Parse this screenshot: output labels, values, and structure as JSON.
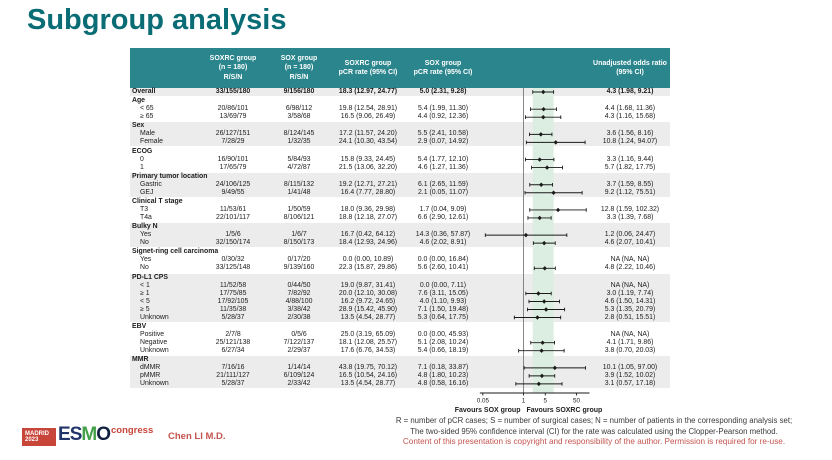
{
  "slide": {
    "title": "Subgroup analysis",
    "presenter": "Chen LI M.D.",
    "logo": {
      "city": "MADRID",
      "year": "2023",
      "letters": [
        "E",
        "S",
        "M",
        "O"
      ],
      "congress": "congress"
    },
    "footnotes": [
      "R = number of pCR cases; S = number of surgical cases; N = number of patients in the corresponding analysis set;",
      "The two-sided 95% confidence interval (CI) for the rate was calculated using the Clopper-Pearson method.",
      "Content of this presentation is copyright and responsibility of the author. Permission is required for re-use."
    ]
  },
  "colors": {
    "header_teal": "#2a858c",
    "title_teal": "#0a6c74",
    "stripe_gray": "#ececec",
    "shade_band_green": "#dcede1",
    "footnote_red": "#c4544e",
    "logo_red": "#c8453a",
    "logo_navy": "#22356a",
    "logo_green": "#44a047",
    "marker_black": "#1a1a1a"
  },
  "table": {
    "headers": {
      "subgroup": "",
      "soxrc_rsn": "SOXRC group\n(n = 180)\nR/S/N",
      "sox_rsn": "SOX group\n(n = 180)\nR/S/N",
      "soxrc_pcr": "SOXRC group\npCR rate (95% CI)",
      "sox_pcr": "SOX group\npCR rate (95% CI)",
      "plot": "",
      "or": "Unadjusted odds ratio\n(95% CI)"
    },
    "groups": [
      {
        "label": "",
        "shaded": true,
        "rows": [
          {
            "label": "Overall",
            "bold": true,
            "rsn_soxrc": "33/155/180",
            "rsn_sox": "9/156/180",
            "pcr_soxrc": "18.3 (12.97, 24.77)",
            "pcr_sox": "5.0 (2.31, 9.28)",
            "or_text": "4.3 (1.98, 9.21)",
            "or": 4.3,
            "lo": 1.98,
            "hi": 9.21
          }
        ]
      },
      {
        "label": "Age",
        "shaded": false,
        "rows": [
          {
            "label": "< 65",
            "rsn_soxrc": "20/86/101",
            "rsn_sox": "6/98/112",
            "pcr_soxrc": "19.8 (12.54, 28.91)",
            "pcr_sox": "5.4 (1.99, 11.30)",
            "or_text": "4.4 (1.68, 11.36)",
            "or": 4.4,
            "lo": 1.68,
            "hi": 11.36
          },
          {
            "label": "≥ 65",
            "rsn_soxrc": "13/69/79",
            "rsn_sox": "3/58/68",
            "pcr_soxrc": "16.5 (9.06, 26.49)",
            "pcr_sox": "4.4 (0.92, 12.36)",
            "or_text": "4.3 (1.16, 15.68)",
            "or": 4.3,
            "lo": 1.16,
            "hi": 15.68
          }
        ]
      },
      {
        "label": "Sex",
        "shaded": true,
        "rows": [
          {
            "label": "Male",
            "rsn_soxrc": "26/127/151",
            "rsn_sox": "8/124/145",
            "pcr_soxrc": "17.2 (11.57, 24.20)",
            "pcr_sox": "5.5 (2.41, 10.58)",
            "or_text": "3.6 (1.56, 8.16)",
            "or": 3.6,
            "lo": 1.56,
            "hi": 8.16
          },
          {
            "label": "Female",
            "rsn_soxrc": "7/28/29",
            "rsn_sox": "1/32/35",
            "pcr_soxrc": "24.1 (10.30, 43.54)",
            "pcr_sox": "2.9 (0.07, 14.92)",
            "or_text": "10.8 (1.24, 94.07)",
            "or": 10.8,
            "lo": 1.24,
            "hi": 94.07
          }
        ]
      },
      {
        "label": "ECOG",
        "shaded": false,
        "rows": [
          {
            "label": "0",
            "rsn_soxrc": "16/90/101",
            "rsn_sox": "5/84/93",
            "pcr_soxrc": "15.8 (9.33, 24.45)",
            "pcr_sox": "5.4 (1.77, 12.10)",
            "or_text": "3.3 (1.16, 9.44)",
            "or": 3.3,
            "lo": 1.16,
            "hi": 9.44
          },
          {
            "label": "1",
            "rsn_soxrc": "17/65/79",
            "rsn_sox": "4/72/87",
            "pcr_soxrc": "21.5 (13.06, 32.20)",
            "pcr_sox": "4.6 (1.27, 11.36)",
            "or_text": "5.7 (1.82, 17.75)",
            "or": 5.7,
            "lo": 1.82,
            "hi": 17.75
          }
        ]
      },
      {
        "label": "Primary tumor location",
        "shaded": true,
        "rows": [
          {
            "label": "Gastric",
            "rsn_soxrc": "24/106/125",
            "rsn_sox": "8/115/132",
            "pcr_soxrc": "19.2 (12.71, 27.21)",
            "pcr_sox": "6.1 (2.65, 11.59)",
            "or_text": "3.7 (1.59, 8.55)",
            "or": 3.7,
            "lo": 1.59,
            "hi": 8.55
          },
          {
            "label": "GEJ",
            "rsn_soxrc": "9/49/55",
            "rsn_sox": "1/41/48",
            "pcr_soxrc": "16.4 (7.77, 28.80)",
            "pcr_sox": "2.1 (0.05, 11.07)",
            "or_text": "9.2 (1.12, 75.51)",
            "or": 9.2,
            "lo": 1.12,
            "hi": 75.51
          }
        ]
      },
      {
        "label": "Clinical T stage",
        "shaded": false,
        "rows": [
          {
            "label": "T3",
            "rsn_soxrc": "11/53/61",
            "rsn_sox": "1/50/59",
            "pcr_soxrc": "18.0 (9.36, 29.98)",
            "pcr_sox": "1.7 (0.04, 9.09)",
            "or_text": "12.8 (1.59, 102.32)",
            "or": 12.8,
            "lo": 1.59,
            "hi": 102.32
          },
          {
            "label": "T4a",
            "rsn_soxrc": "22/101/117",
            "rsn_sox": "8/106/121",
            "pcr_soxrc": "18.8 (12.18, 27.07)",
            "pcr_sox": "6.6 (2.90, 12.61)",
            "or_text": "3.3 (1.39, 7.68)",
            "or": 3.3,
            "lo": 1.39,
            "hi": 7.68
          }
        ]
      },
      {
        "label": "Bulky N",
        "shaded": true,
        "rows": [
          {
            "label": "Yes",
            "rsn_soxrc": "1/5/6",
            "rsn_sox": "1/6/7",
            "pcr_soxrc": "16.7 (0.42, 64.12)",
            "pcr_sox": "14.3 (0.36, 57.87)",
            "or_text": "1.2 (0.06, 24.47)",
            "or": 1.2,
            "lo": 0.06,
            "hi": 24.47
          },
          {
            "label": "No",
            "rsn_soxrc": "32/150/174",
            "rsn_sox": "8/150/173",
            "pcr_soxrc": "18.4 (12.93, 24.96)",
            "pcr_sox": "4.6 (2.02, 8.91)",
            "or_text": "4.6 (2.07, 10.41)",
            "or": 4.6,
            "lo": 2.07,
            "hi": 10.41
          }
        ]
      },
      {
        "label": "Signet-ring cell carcinoma",
        "shaded": false,
        "rows": [
          {
            "label": "Yes",
            "rsn_soxrc": "0/30/32",
            "rsn_sox": "0/17/20",
            "pcr_soxrc": "0.0 (0.00, 10.89)",
            "pcr_sox": "0.0 (0.00, 16.84)",
            "or_text": "NA (NA, NA)",
            "or": null,
            "lo": null,
            "hi": null
          },
          {
            "label": "No",
            "rsn_soxrc": "33/125/148",
            "rsn_sox": "9/139/160",
            "pcr_soxrc": "22.3 (15.87, 29.86)",
            "pcr_sox": "5.6 (2.60, 10.41)",
            "or_text": "4.8 (2.22, 10.46)",
            "or": 4.8,
            "lo": 2.22,
            "hi": 10.46
          }
        ]
      },
      {
        "label": "PD-L1 CPS",
        "shaded": true,
        "rows": [
          {
            "label": "< 1",
            "rsn_soxrc": "11/52/58",
            "rsn_sox": "0/44/50",
            "pcr_soxrc": "19.0 (9.87, 31.41)",
            "pcr_sox": "0.0 (0.00, 7.11)",
            "or_text": "NA (NA, NA)",
            "or": null,
            "lo": null,
            "hi": null
          },
          {
            "label": "≥ 1",
            "rsn_soxrc": "17/75/85",
            "rsn_sox": "7/82/92",
            "pcr_soxrc": "20.0 (12.10, 30.08)",
            "pcr_sox": "7.6 (3.11, 15.05)",
            "or_text": "3.0 (1.19, 7.74)",
            "or": 3.0,
            "lo": 1.19,
            "hi": 7.74
          },
          {
            "label": "< 5",
            "rsn_soxrc": "17/92/105",
            "rsn_sox": "4/88/100",
            "pcr_soxrc": "16.2 (9.72, 24.65)",
            "pcr_sox": "4.0 (1.10, 9.93)",
            "or_text": "4.6 (1.50, 14.31)",
            "or": 4.6,
            "lo": 1.5,
            "hi": 14.31
          },
          {
            "label": "≥ 5",
            "rsn_soxrc": "11/35/38",
            "rsn_sox": "3/38/42",
            "pcr_soxrc": "28.9 (15.42, 45.90)",
            "pcr_sox": "7.1 (1.50, 19.48)",
            "or_text": "5.3 (1.35, 20.79)",
            "or": 5.3,
            "lo": 1.35,
            "hi": 20.79
          },
          {
            "label": "Unknown",
            "rsn_soxrc": "5/28/37",
            "rsn_sox": "2/30/38",
            "pcr_soxrc": "13.5 (4.54, 28.77)",
            "pcr_sox": "5.3 (0.64, 17.75)",
            "or_text": "2.8 (0.51, 15.51)",
            "or": 2.8,
            "lo": 0.51,
            "hi": 15.51
          }
        ]
      },
      {
        "label": "EBV",
        "shaded": false,
        "rows": [
          {
            "label": "Positive",
            "rsn_soxrc": "2/7/8",
            "rsn_sox": "0/5/6",
            "pcr_soxrc": "25.0 (3.19, 65.09)",
            "pcr_sox": "0.0 (0.00, 45.93)",
            "or_text": "NA (NA, NA)",
            "or": null,
            "lo": null,
            "hi": null
          },
          {
            "label": "Negative",
            "rsn_soxrc": "25/121/138",
            "rsn_sox": "7/122/137",
            "pcr_soxrc": "18.1 (12.08, 25.57)",
            "pcr_sox": "5.1 (2.08, 10.24)",
            "or_text": "4.1 (1.71, 9.86)",
            "or": 4.1,
            "lo": 1.71,
            "hi": 9.86
          },
          {
            "label": "Unknown",
            "rsn_soxrc": "6/27/34",
            "rsn_sox": "2/29/37",
            "pcr_soxrc": "17.6 (6.76, 34.53)",
            "pcr_sox": "5.4 (0.66, 18.19)",
            "or_text": "3.8 (0.70, 20.03)",
            "or": 3.8,
            "lo": 0.7,
            "hi": 20.03
          }
        ]
      },
      {
        "label": "MMR",
        "shaded": true,
        "rows": [
          {
            "label": "dMMR",
            "rsn_soxrc": "7/16/16",
            "rsn_sox": "1/14/14",
            "pcr_soxrc": "43.8 (19.75, 70.12)",
            "pcr_sox": "7.1 (0.18, 33.87)",
            "or_text": "10.1 (1.05, 97.00)",
            "or": 10.1,
            "lo": 1.05,
            "hi": 97.0
          },
          {
            "label": "pMMR",
            "rsn_soxrc": "21/111/127",
            "rsn_sox": "6/109/124",
            "pcr_soxrc": "16.5 (10.54, 24.16)",
            "pcr_sox": "4.8 (1.80, 10.23)",
            "or_text": "3.9 (1.52, 10.02)",
            "or": 3.9,
            "lo": 1.52,
            "hi": 10.02
          },
          {
            "label": "Unknown",
            "rsn_soxrc": "5/28/37",
            "rsn_sox": "2/33/42",
            "pcr_soxrc": "13.5 (4.54, 28.77)",
            "pcr_sox": "4.8 (0.58, 16.16)",
            "or_text": "3.1 (0.57, 17.18)",
            "or": 3.1,
            "lo": 0.57,
            "hi": 17.18
          }
        ]
      }
    ]
  },
  "forest": {
    "scale_min": 0.035,
    "scale_max": 135,
    "axis_ticks": [
      0.05,
      1,
      5,
      50
    ],
    "axis_tick_labels": [
      "0.05",
      "1",
      "5",
      "50"
    ],
    "ref_line": 1,
    "shade_lo": 1.98,
    "shade_hi": 9.21,
    "favours_left": "Favours SOX group",
    "favours_right": "Favours SOXRC group"
  },
  "chart_data": {
    "type": "scatter",
    "title": "Subgroup analysis — unadjusted odds ratio (95% CI), log x-axis",
    "xlabel": "Unadjusted odds ratio (log scale)",
    "x_ticks": [
      0.05,
      1,
      5,
      50
    ],
    "reference_line": 1,
    "shaded_band": [
      1.98,
      9.21
    ],
    "annotations": [
      "Favours SOX group",
      "Favours SOXRC group"
    ],
    "categories": [
      "Overall",
      "Age < 65",
      "Age ≥ 65",
      "Male",
      "Female",
      "ECOG 0",
      "ECOG 1",
      "Gastric",
      "GEJ",
      "T3",
      "T4a",
      "Bulky N Yes",
      "Bulky N No",
      "Signet-ring Yes",
      "Signet-ring No",
      "PD-L1 CPS < 1",
      "PD-L1 CPS ≥ 1",
      "PD-L1 CPS < 5",
      "PD-L1 CPS ≥ 5",
      "PD-L1 CPS Unknown",
      "EBV Positive",
      "EBV Negative",
      "EBV Unknown",
      "dMMR",
      "pMMR",
      "MMR Unknown"
    ],
    "series": [
      {
        "name": "Odds ratio",
        "values": [
          4.3,
          4.4,
          4.3,
          3.6,
          10.8,
          3.3,
          5.7,
          3.7,
          9.2,
          12.8,
          3.3,
          1.2,
          4.6,
          null,
          4.8,
          null,
          3.0,
          4.6,
          5.3,
          2.8,
          null,
          4.1,
          3.8,
          10.1,
          3.9,
          3.1
        ]
      },
      {
        "name": "CI lower",
        "values": [
          1.98,
          1.68,
          1.16,
          1.56,
          1.24,
          1.16,
          1.82,
          1.59,
          1.12,
          1.59,
          1.39,
          0.06,
          2.07,
          null,
          2.22,
          null,
          1.19,
          1.5,
          1.35,
          0.51,
          null,
          1.71,
          0.7,
          1.05,
          1.52,
          0.57
        ]
      },
      {
        "name": "CI upper",
        "values": [
          9.21,
          11.36,
          15.68,
          8.16,
          94.07,
          9.44,
          17.75,
          8.55,
          75.51,
          102.32,
          7.68,
          24.47,
          10.41,
          null,
          10.46,
          null,
          7.74,
          14.31,
          20.79,
          15.51,
          null,
          9.86,
          20.03,
          97.0,
          10.02,
          17.18
        ]
      }
    ]
  }
}
